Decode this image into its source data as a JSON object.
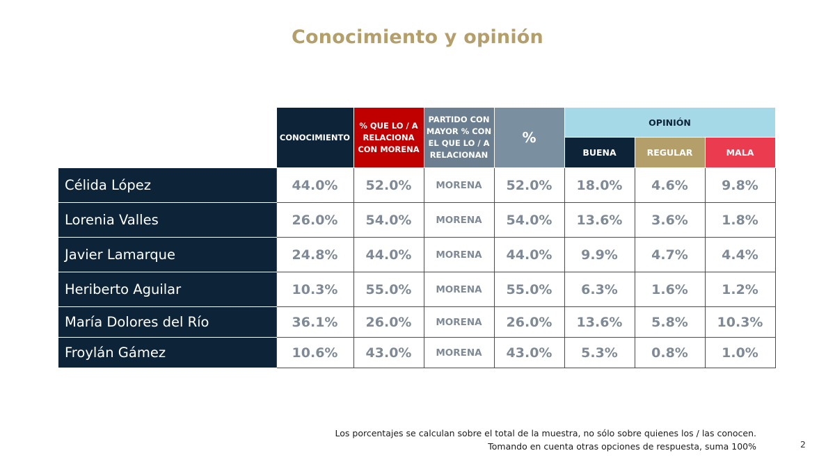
{
  "title": "Conocimiento y opinión",
  "headers": {
    "conocimiento": "CONOCIMIENTO",
    "relaciona_morena": "% QUE LO / A RELACIONA CON MORENA",
    "partido": "PARTIDO CON MAYOR % CON EL QUE LO / A RELACIONAN",
    "pct": "%",
    "opinion": "OPINIÓN",
    "buena": "BUENA",
    "regular": "REGULAR",
    "mala": "MALA"
  },
  "rows": [
    {
      "name": "Célida López",
      "conocimiento": "44.0%",
      "relaciona": "52.0%",
      "partido": "MORENA",
      "pct": "52.0%",
      "buena": "18.0%",
      "regular": "4.6%",
      "mala": "9.8%"
    },
    {
      "name": "Lorenia Valles",
      "conocimiento": "26.0%",
      "relaciona": "54.0%",
      "partido": "MORENA",
      "pct": "54.0%",
      "buena": "13.6%",
      "regular": "3.6%",
      "mala": "1.8%"
    },
    {
      "name": "Javier Lamarque",
      "conocimiento": "24.8%",
      "relaciona": "44.0%",
      "partido": "MORENA",
      "pct": "44.0%",
      "buena": "9.9%",
      "regular": "4.7%",
      "mala": "4.4%"
    },
    {
      "name": "Heriberto Aguilar",
      "conocimiento": "10.3%",
      "relaciona": "55.0%",
      "partido": "MORENA",
      "pct": "55.0%",
      "buena": "6.3%",
      "regular": "1.6%",
      "mala": "1.2%"
    },
    {
      "name": "María Dolores del Río",
      "conocimiento": "36.1%",
      "relaciona": "26.0%",
      "partido": "MORENA",
      "pct": "26.0%",
      "buena": "13.6%",
      "regular": "5.8%",
      "mala": "10.3%"
    },
    {
      "name": "Froylán Gámez",
      "conocimiento": "10.6%",
      "relaciona": "43.0%",
      "partido": "MORENA",
      "pct": "43.0%",
      "buena": "5.3%",
      "regular": "0.8%",
      "mala": "1.0%"
    }
  ],
  "footnote": {
    "line1": "Los porcentajes se calculan sobre el total de la muestra, no sólo sobre quienes los / las conocen.",
    "line2": "Tomando en cuenta otras opciones de respuesta, suma 100%"
  },
  "page_number": "2",
  "colors": {
    "navy": "#0d2438",
    "gold": "#b49f6b",
    "red": "#c00000",
    "slate": "#6c7f91",
    "light_blue": "#a6d9e8",
    "pink_red": "#ea3b4f",
    "value_gray": "#7f8a96"
  }
}
